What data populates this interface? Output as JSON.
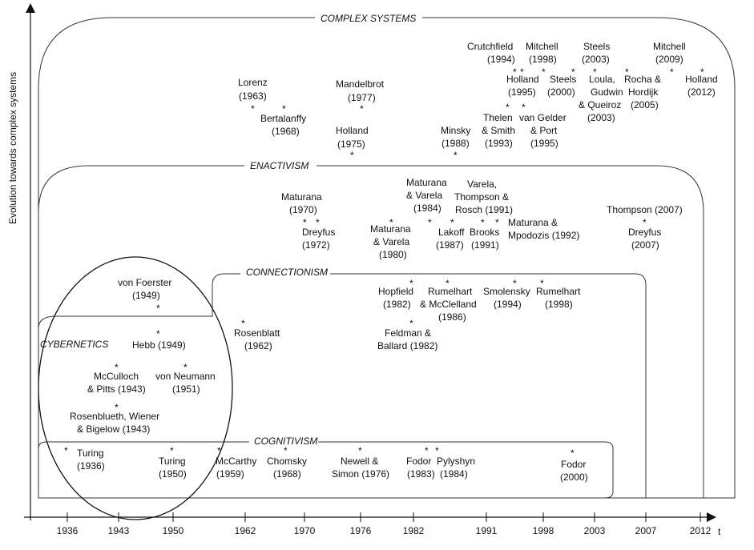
{
  "axes": {
    "y_label": "Evolution towards complex systems",
    "x_label": "t",
    "x_ticks": [
      "1936",
      "1943",
      "1950",
      "1962",
      "1970",
      "1976",
      "1982",
      "1991",
      "1998",
      "2003",
      "2007",
      "2012"
    ]
  },
  "regions": {
    "complex_systems": "COMPLEX SYSTEMS",
    "enactivism": "ENACTIVISM",
    "connectionism": "CONNECTIONISM",
    "cybernetics": "CYBERNETICS",
    "cognitivism": "COGNITIVISM"
  },
  "complex_entries": {
    "lorenz": [
      "Lorenz",
      "(1963)"
    ],
    "bertalanffy": [
      "Bertalanffy",
      "(1968)"
    ],
    "mandelbrot": [
      "Mandelbrot",
      "(1977)"
    ],
    "holland1975": [
      "Holland",
      "(1975)"
    ],
    "minsky": [
      "Minsky",
      "(1988)"
    ],
    "crutchfield": [
      "Crutchfield",
      "(1994)"
    ],
    "mitchell1998": [
      "Mitchell",
      "(1998)"
    ],
    "steels2003": [
      "Steels",
      "(2003)"
    ],
    "mitchell2009": [
      "Mitchell",
      "(2009)"
    ],
    "holland1995": [
      "Holland",
      "(1995)"
    ],
    "steels2000": [
      "Steels",
      "(2000)"
    ],
    "loula": [
      "Loula,",
      "Gudwin",
      "& Queiroz",
      "(2003)"
    ],
    "rocha": [
      "Rocha &",
      "Hordijk",
      "(2005)"
    ],
    "holland2012": [
      "Holland",
      "(2012)"
    ],
    "thelen": [
      "Thelen",
      "& Smith",
      "(1993)"
    ],
    "vangelder": [
      "van Gelder",
      "& Port",
      "(1995)"
    ]
  },
  "enactivism_entries": {
    "maturana1970": [
      "Maturana",
      "(1970)"
    ],
    "dreyfus1972": [
      "Dreyfus",
      "(1972)"
    ],
    "maturana_varela1980": [
      "Maturana",
      "& Varela",
      "(1980)"
    ],
    "maturana_varela1984": [
      "Maturana",
      "& Varela",
      "(1984)"
    ],
    "varela1991": [
      "Varela,",
      "Thompson &",
      "Rosch (1991)"
    ],
    "lakoff": [
      "Lakoff",
      "(1987)"
    ],
    "brooks": [
      "Brooks",
      "(1991)"
    ],
    "mpodozis": [
      "Maturana &",
      "Mpodozis (1992)"
    ],
    "thompson": [
      "Thompson (2007)"
    ],
    "dreyfus2007": [
      "Dreyfus",
      "(2007)"
    ]
  },
  "connectionism_entries": {
    "rosenblatt": [
      "Rosenblatt",
      "(1962)"
    ],
    "hopfield": [
      "Hopfield",
      "(1982)"
    ],
    "rumelhart1986": [
      "Rumelhart",
      "& McClelland",
      "(1986)"
    ],
    "smolensky": [
      "Smolensky",
      "(1994)"
    ],
    "rumelhart1998": [
      "Rumelhart",
      "(1998)"
    ],
    "feldman": [
      "Feldman &",
      "Ballard (1982)"
    ]
  },
  "cybernetics_entries": {
    "vonfoerster": [
      "von Foerster",
      "(1949)"
    ],
    "hebb": [
      "Hebb (1949)"
    ],
    "mcculloch": [
      "McCulloch",
      "& Pitts (1943)"
    ],
    "vonneumann": [
      "von Neumann",
      "(1951)"
    ],
    "rosenblueth": [
      "Rosenblueth, Wiener",
      "& Bigelow (1943)"
    ]
  },
  "cognitivism_entries": {
    "turing1936": [
      "Turing",
      "(1936)"
    ],
    "turing1950": [
      "Turing",
      "(1950)"
    ],
    "mccarthy": [
      "McCarthy",
      "(1959)"
    ],
    "chomsky": [
      "Chomsky",
      "(1968)"
    ],
    "newell": [
      "Newell &",
      "Simon (1976)"
    ],
    "fodor1983": [
      "Fodor",
      "(1983)"
    ],
    "pylyshyn": [
      "Pylyshyn",
      "(1984)"
    ],
    "fodor2000": [
      "Fodor",
      "(2000)"
    ]
  }
}
